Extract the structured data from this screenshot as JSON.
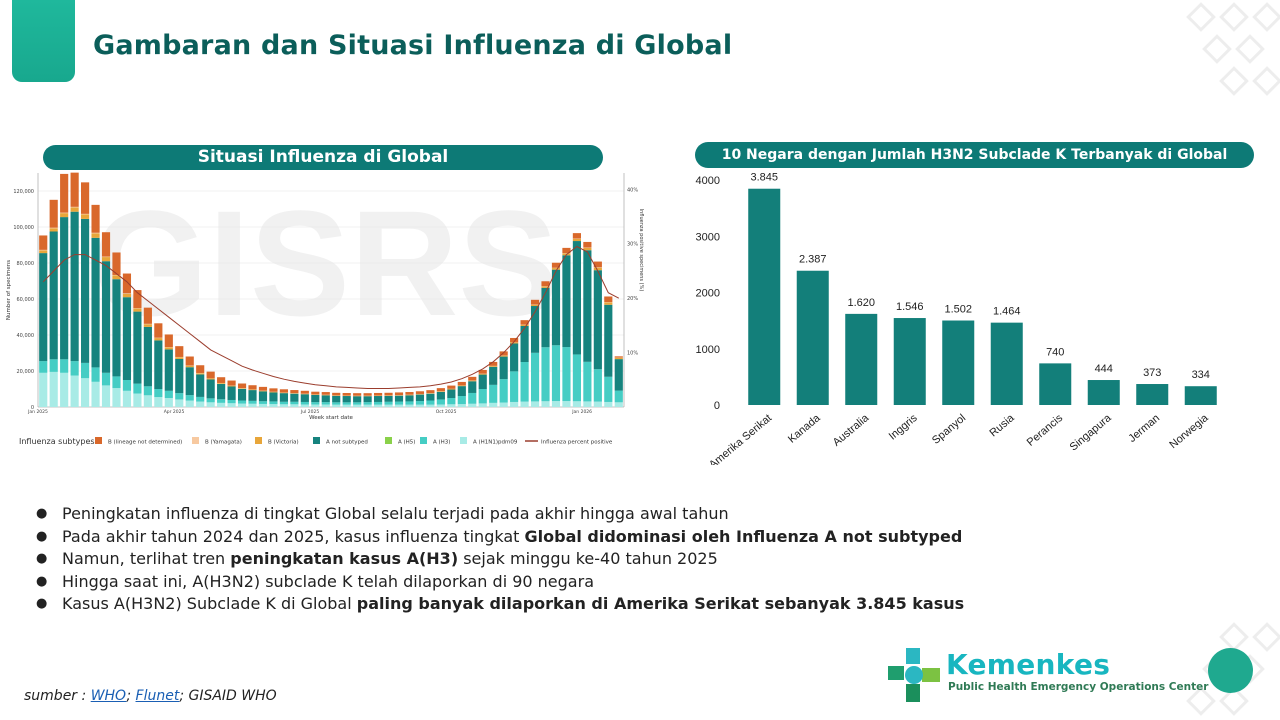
{
  "slide_title": "Gambaran dan Situasi Influenza di Global",
  "left_panel": {
    "title": "Situasi Influenza di Global",
    "watermark": "GISRS"
  },
  "right_panel": {
    "title": "10 Negara dengan Jumlah H3N2 Subclade K Terbanyak di Global"
  },
  "bullets": [
    {
      "parts": [
        {
          "t": "Peningkatan influenza di tingkat Global selalu terjadi pada akhir hingga awal tahun",
          "b": false
        }
      ]
    },
    {
      "parts": [
        {
          "t": "Pada akhir tahun 2024 dan 2025, kasus influenza tingkat ",
          "b": false
        },
        {
          "t": "Global didominasi oleh Influenza A not subtyped",
          "b": true
        }
      ]
    },
    {
      "parts": [
        {
          "t": "Namun, terlihat tren ",
          "b": false
        },
        {
          "t": "peningkatan kasus A(H3)",
          "b": true
        },
        {
          "t": " sejak minggu ke-40 tahun 2025",
          "b": false
        }
      ]
    },
    {
      "parts": [
        {
          "t": "Hingga saat ini, A(H3N2) subclade K telah dilaporkan di 90 negara",
          "b": false
        }
      ]
    },
    {
      "parts": [
        {
          "t": "Kasus A(H3N2) Subclade K di Global ",
          "b": false
        },
        {
          "t": "paling banyak dilaporkan di Amerika Serikat sebanyak 3.845 kasus",
          "b": true
        }
      ]
    }
  ],
  "source": {
    "prefix": "sumber : ",
    "who": "WHO",
    "sep1": "; ",
    "flunet": "Flunet",
    "sep2": "; GISAID WHO"
  },
  "logo": {
    "name": "Kemenkes",
    "subtitle": "Public Health Emergency Operations Center"
  },
  "colors": {
    "teal": "#0d7a76",
    "bar": "#137f7a",
    "b_lineage": "#d9682b",
    "b_yamagata": "#f7c9a0",
    "b_victoria": "#e8a63a",
    "a_not_subtyped": "#16837e",
    "a_h5": "#8ad14a",
    "a_h3": "#45cdc4",
    "a_h1n1": "#a8ebe6",
    "percent_line": "#9b3d2d"
  },
  "chart_data": [
    {
      "type": "bar",
      "stacked": true,
      "title": "Situasi Influenza di Global",
      "xlabel": "Week start date",
      "ylabel": "Number of specimens",
      "y2label": "Influenza positive specimens (%)",
      "ylim": [
        0,
        130000
      ],
      "y2lim": [
        0,
        43
      ],
      "yticks": [
        0,
        20000,
        40000,
        60000,
        80000,
        100000,
        120000
      ],
      "ytick_labels": [
        "0",
        "20,000",
        "40,000",
        "60,000",
        "80,000",
        "100,000",
        "120,000"
      ],
      "y2ticks": [
        10,
        20,
        30,
        40
      ],
      "y2tick_labels": [
        "10%",
        "20%",
        "30%",
        "40%"
      ],
      "xtick_labels": [
        "Jan 2025",
        "Apr 2025",
        "Jul 2025",
        "Oct 2025",
        "Jan 2026"
      ],
      "xtick_positions": [
        0,
        13,
        26,
        39,
        52
      ],
      "weeks": 56,
      "series": [
        {
          "name": "A (H1N1)pdm09",
          "color": "#a8ebe6",
          "values": [
            19000,
            19500,
            19000,
            17500,
            16000,
            14000,
            12000,
            10500,
            9000,
            7500,
            6500,
            5500,
            5000,
            4200,
            3600,
            3000,
            2600,
            2300,
            2100,
            1900,
            1800,
            1700,
            1600,
            1500,
            1500,
            1400,
            1400,
            1400,
            1300,
            1300,
            1300,
            1300,
            1300,
            1300,
            1300,
            1300,
            1300,
            1300,
            1400,
            1500,
            1600,
            1800,
            2000,
            2300,
            2500,
            2800,
            3000,
            3100,
            3200,
            3300,
            3300,
            3200,
            3100,
            3000,
            2800,
            2600
          ]
        },
        {
          "name": "A (H3)",
          "color": "#45cdc4",
          "values": [
            6500,
            7000,
            7500,
            8000,
            8500,
            8000,
            7000,
            6500,
            6000,
            5500,
            5000,
            4500,
            4000,
            3500,
            3000,
            2600,
            2200,
            2000,
            1800,
            1700,
            1600,
            1500,
            1500,
            1400,
            1400,
            1400,
            1300,
            1300,
            1300,
            1300,
            1300,
            1400,
            1500,
            1600,
            1700,
            1800,
            2000,
            2300,
            2800,
            3500,
            4500,
            6000,
            8000,
            10000,
            13000,
            17000,
            22000,
            27000,
            30000,
            31000,
            30000,
            26000,
            22000,
            18000,
            14000,
            6500
          ]
        },
        {
          "name": "A (H5)",
          "color": "#8ad14a",
          "values": [
            0,
            0,
            0,
            0,
            0,
            0,
            0,
            0,
            0,
            0,
            0,
            0,
            0,
            0,
            0,
            0,
            0,
            0,
            0,
            0,
            0,
            0,
            0,
            0,
            0,
            0,
            0,
            0,
            0,
            0,
            0,
            0,
            0,
            0,
            0,
            0,
            0,
            0,
            0,
            0,
            0,
            0,
            0,
            0,
            0,
            0,
            0,
            0,
            0,
            0,
            0,
            0,
            0,
            0,
            0,
            0
          ]
        },
        {
          "name": "A not subtyped",
          "color": "#16837e",
          "values": [
            60000,
            71000,
            79000,
            83000,
            80000,
            72000,
            62000,
            54000,
            46000,
            40000,
            33000,
            27000,
            23000,
            19000,
            15500,
            12500,
            10500,
            8500,
            7500,
            6500,
            6000,
            5500,
            5000,
            4800,
            4500,
            4300,
            4000,
            3800,
            3600,
            3500,
            3400,
            3300,
            3300,
            3300,
            3300,
            3400,
            3600,
            3800,
            4200,
            4700,
            5500,
            6500,
            8000,
            10000,
            12500,
            15500,
            20000,
            26000,
            33000,
            42000,
            51000,
            63000,
            62000,
            55000,
            40000,
            17500
          ]
        },
        {
          "name": "B (Victoria)",
          "color": "#e8a63a",
          "values": [
            1500,
            1800,
            2200,
            2400,
            2500,
            2500,
            2300,
            2100,
            1900,
            1700,
            1500,
            1300,
            1100,
            950,
            800,
            650,
            550,
            450,
            400,
            350,
            300,
            280,
            260,
            240,
            220,
            200,
            200,
            200,
            180,
            180,
            180,
            180,
            200,
            200,
            200,
            220,
            240,
            260,
            280,
            300,
            330,
            360,
            400,
            450,
            500,
            550,
            600,
            700,
            800,
            900,
            1000,
            1200,
            1300,
            1400,
            1300,
            700
          ]
        },
        {
          "name": "B (Yamagata)",
          "color": "#f7c9a0",
          "values": [
            300,
            300,
            300,
            300,
            300,
            300,
            300,
            250,
            250,
            250,
            200,
            200,
            200,
            150,
            150,
            150,
            100,
            100,
            100,
            100,
            100,
            100,
            100,
            100,
            100,
            100,
            100,
            100,
            100,
            100,
            100,
            100,
            100,
            100,
            100,
            100,
            100,
            100,
            100,
            100,
            100,
            100,
            100,
            100,
            100,
            100,
            150,
            150,
            150,
            150,
            200,
            200,
            200,
            200,
            200,
            150
          ]
        },
        {
          "name": "B (lineage not determined)",
          "color": "#d9682b",
          "values": [
            8000,
            15500,
            21500,
            19000,
            17500,
            15500,
            13500,
            12500,
            11000,
            10000,
            9000,
            8000,
            7000,
            6000,
            5000,
            4300,
            3700,
            3200,
            2800,
            2500,
            2300,
            2100,
            1900,
            1800,
            1700,
            1600,
            1500,
            1500,
            1400,
            1400,
            1400,
            1400,
            1400,
            1400,
            1500,
            1500,
            1500,
            1600,
            1700,
            1800,
            1900,
            2000,
            2100,
            2200,
            2300,
            2400,
            2500,
            2600,
            2700,
            2800,
            2900,
            3000,
            3100,
            3200,
            3100,
            700
          ]
        }
      ],
      "line": {
        "name": "Influenza percent positive",
        "color": "#9b3d2d",
        "values": [
          23,
          25,
          27,
          28,
          28,
          27,
          26,
          24.5,
          23,
          21,
          19.5,
          18,
          16.5,
          15,
          13.5,
          12,
          10.5,
          9.5,
          8.5,
          7.5,
          6.8,
          6.2,
          5.6,
          5.1,
          4.7,
          4.4,
          4.1,
          3.9,
          3.7,
          3.6,
          3.5,
          3.4,
          3.4,
          3.4,
          3.5,
          3.6,
          3.7,
          3.9,
          4.2,
          4.6,
          5.2,
          6,
          7,
          8.3,
          10,
          12,
          14.5,
          17.5,
          21,
          25,
          28,
          29.5,
          28.5,
          25,
          21,
          20
        ]
      },
      "legend": {
        "title": "Influenza subtypes",
        "items": [
          {
            "label": "B (lineage not determined)",
            "color": "#d9682b",
            "kind": "box"
          },
          {
            "label": "B (Yamagata)",
            "color": "#f7c9a0",
            "kind": "box"
          },
          {
            "label": "B (Victoria)",
            "color": "#e8a63a",
            "kind": "box"
          },
          {
            "label": "A not subtyped",
            "color": "#16837e",
            "kind": "box"
          },
          {
            "label": "A (H5)",
            "color": "#8ad14a",
            "kind": "box"
          },
          {
            "label": "A (H3)",
            "color": "#45cdc4",
            "kind": "box"
          },
          {
            "label": "A (H1N1)pdm09",
            "color": "#a8ebe6",
            "kind": "box"
          },
          {
            "label": "Influenza percent positive",
            "color": "#9b3d2d",
            "kind": "line"
          }
        ]
      }
    },
    {
      "type": "bar",
      "title": "10 Negara dengan Jumlah H3N2 Subclade K Terbanyak di Global",
      "categories": [
        "Amerika Serikat",
        "Kanada",
        "Australia",
        "Inggris",
        "Spanyol",
        "Rusia",
        "Perancis",
        "Singapura",
        "Jerman",
        "Norwegia"
      ],
      "values": [
        3845,
        2387,
        1620,
        1546,
        1502,
        1464,
        740,
        444,
        373,
        334
      ],
      "value_labels": [
        "3.845",
        "2.387",
        "1.620",
        "1.546",
        "1.502",
        "1.464",
        "740",
        "444",
        "373",
        "334"
      ],
      "yticks": [
        0,
        1000,
        2000,
        3000,
        4000
      ],
      "ytick_labels": [
        "0",
        "1000",
        "2000",
        "3000",
        "4000"
      ],
      "ylim": [
        0,
        4000
      ],
      "color": "#137f7a"
    }
  ]
}
